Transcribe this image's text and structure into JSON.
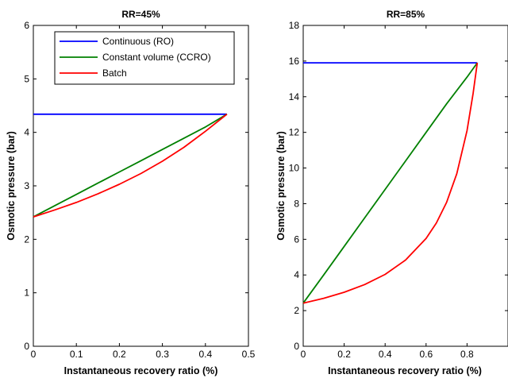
{
  "chart_data": [
    {
      "type": "line",
      "title": "RR=45%",
      "xlabel": "Instantaneous recovery ratio (%)",
      "ylabel": "Osmotic pressure (bar)",
      "xlim": [
        0,
        0.5
      ],
      "ylim": [
        0,
        6
      ],
      "xticks": [
        "0",
        "0.1",
        "0.2",
        "0.3",
        "0.4",
        "0.5"
      ],
      "yticks": [
        "0",
        "1",
        "2",
        "3",
        "4",
        "5",
        "6"
      ],
      "grid": false,
      "legend": {
        "placement": "top",
        "entries": [
          {
            "label": "Continuous (RO)",
            "color": "#0000ff"
          },
          {
            "label": "Constant volume (CCRO)",
            "color": "#008000"
          },
          {
            "label": "Batch",
            "color": "#ff0000"
          }
        ]
      },
      "series": [
        {
          "name": "Continuous (RO)",
          "color": "#0000ff",
          "x": [
            0,
            0.45
          ],
          "y": [
            4.34,
            4.34
          ]
        },
        {
          "name": "Constant volume (CCRO)",
          "color": "#008000",
          "x": [
            0,
            0.05,
            0.1,
            0.15,
            0.2,
            0.25,
            0.3,
            0.35,
            0.4,
            0.45
          ],
          "y": [
            2.42,
            2.63,
            2.84,
            3.05,
            3.26,
            3.47,
            3.68,
            3.89,
            4.1,
            4.34
          ]
        },
        {
          "name": "Batch",
          "color": "#ff0000",
          "x": [
            0,
            0.05,
            0.1,
            0.15,
            0.2,
            0.25,
            0.3,
            0.35,
            0.4,
            0.45
          ],
          "y": [
            2.42,
            2.55,
            2.69,
            2.85,
            3.03,
            3.23,
            3.46,
            3.72,
            4.02,
            4.34
          ]
        }
      ]
    },
    {
      "type": "line",
      "title": "RR=85%",
      "xlabel": "Instantaneous recovery ratio (%)",
      "ylabel": "Osmotic pressure (bar)",
      "xlim": [
        0,
        1
      ],
      "ylim": [
        0,
        18
      ],
      "xticks": [
        "0",
        "0.2",
        "0.4",
        "0.6",
        "0.8"
      ],
      "yticks": [
        "0",
        "2",
        "4",
        "6",
        "8",
        "10",
        "12",
        "14",
        "16",
        "18"
      ],
      "grid": false,
      "series": [
        {
          "name": "Continuous (RO)",
          "color": "#0000ff",
          "x": [
            0,
            0.85
          ],
          "y": [
            15.9,
            15.9
          ]
        },
        {
          "name": "Constant volume (CCRO)",
          "color": "#008000",
          "x": [
            0,
            0.1,
            0.2,
            0.3,
            0.4,
            0.5,
            0.6,
            0.7,
            0.8,
            0.85
          ],
          "y": [
            2.42,
            4.0,
            5.6,
            7.2,
            8.8,
            10.4,
            12.0,
            13.6,
            15.1,
            15.9
          ]
        },
        {
          "name": "Batch",
          "color": "#ff0000",
          "x": [
            0,
            0.1,
            0.2,
            0.3,
            0.4,
            0.5,
            0.6,
            0.65,
            0.7,
            0.75,
            0.8,
            0.83,
            0.85
          ],
          "y": [
            2.42,
            2.69,
            3.03,
            3.46,
            4.03,
            4.84,
            6.05,
            6.91,
            8.07,
            9.68,
            12.1,
            14.2,
            15.9
          ]
        }
      ]
    }
  ]
}
